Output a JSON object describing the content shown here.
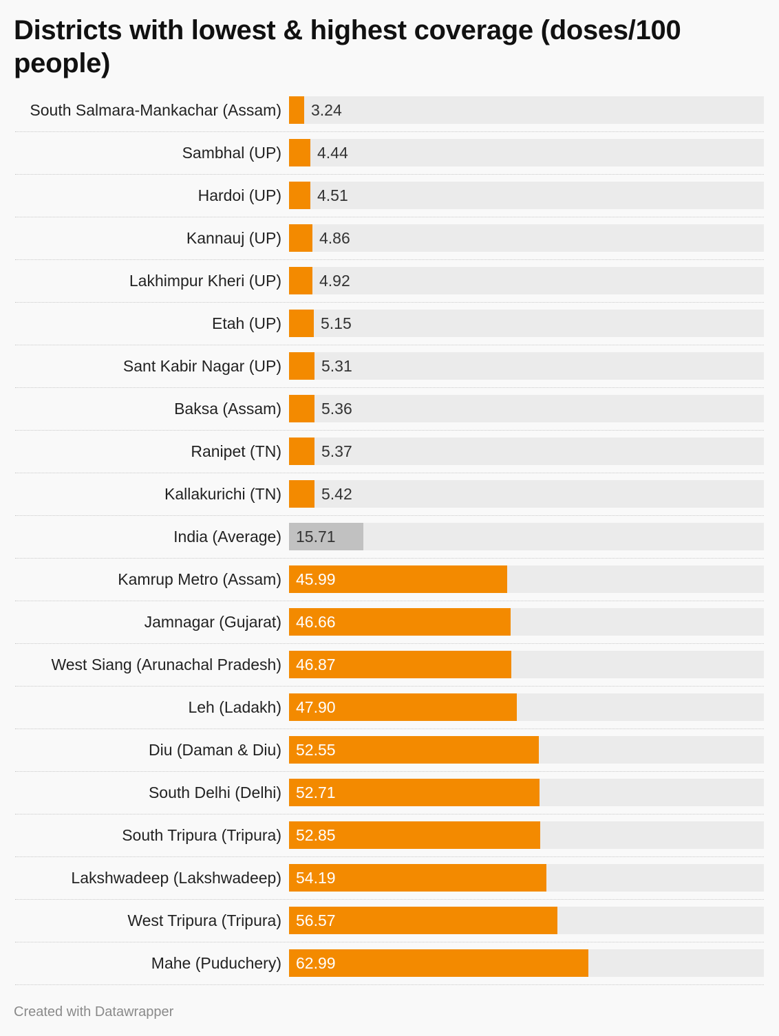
{
  "title": "Districts with lowest & highest coverage (doses/100 people)",
  "credit": "Created with Datawrapper",
  "colors": {
    "bar": "#f38a00",
    "average_bar": "#c1c1c1",
    "track": "#ebebeb",
    "background": "#f9f9f9"
  },
  "chart_data": {
    "type": "bar",
    "orientation": "horizontal",
    "title": "Districts with lowest & highest coverage (doses/100 people)",
    "xlim": [
      0,
      100
    ],
    "grid": false,
    "categories": [
      "South Salmara-Mankachar (Assam)",
      "Sambhal (UP)",
      "Hardoi (UP)",
      "Kannauj (UP)",
      "Lakhimpur Kheri (UP)",
      "Etah (UP)",
      "Sant Kabir Nagar (UP)",
      "Baksa (Assam)",
      "Ranipet (TN)",
      "Kallakurichi (TN)",
      "India (Average)",
      "Kamrup Metro (Assam)",
      "Jamnagar (Gujarat)",
      "West Siang (Arunachal Pradesh)",
      "Leh (Ladakh)",
      "Diu (Daman & Diu)",
      "South Delhi (Delhi)",
      "South Tripura (Tripura)",
      "Lakshwadeep (Lakshwadeep)",
      "West Tripura (Tripura)",
      "Mahe (Puduchery)"
    ],
    "values": [
      3.24,
      4.44,
      4.51,
      4.86,
      4.92,
      5.15,
      5.31,
      5.36,
      5.37,
      5.42,
      15.71,
      45.99,
      46.66,
      46.87,
      47.9,
      52.55,
      52.71,
      52.85,
      54.19,
      56.57,
      62.99
    ],
    "value_labels": [
      "3.24",
      "4.44",
      "4.51",
      "4.86",
      "4.92",
      "5.15",
      "5.31",
      "5.36",
      "5.37",
      "5.42",
      "15.71",
      "45.99",
      "46.66",
      "46.87",
      "47.90",
      "52.55",
      "52.71",
      "52.85",
      "54.19",
      "56.57",
      "62.99"
    ],
    "highlight": "India (Average)"
  }
}
